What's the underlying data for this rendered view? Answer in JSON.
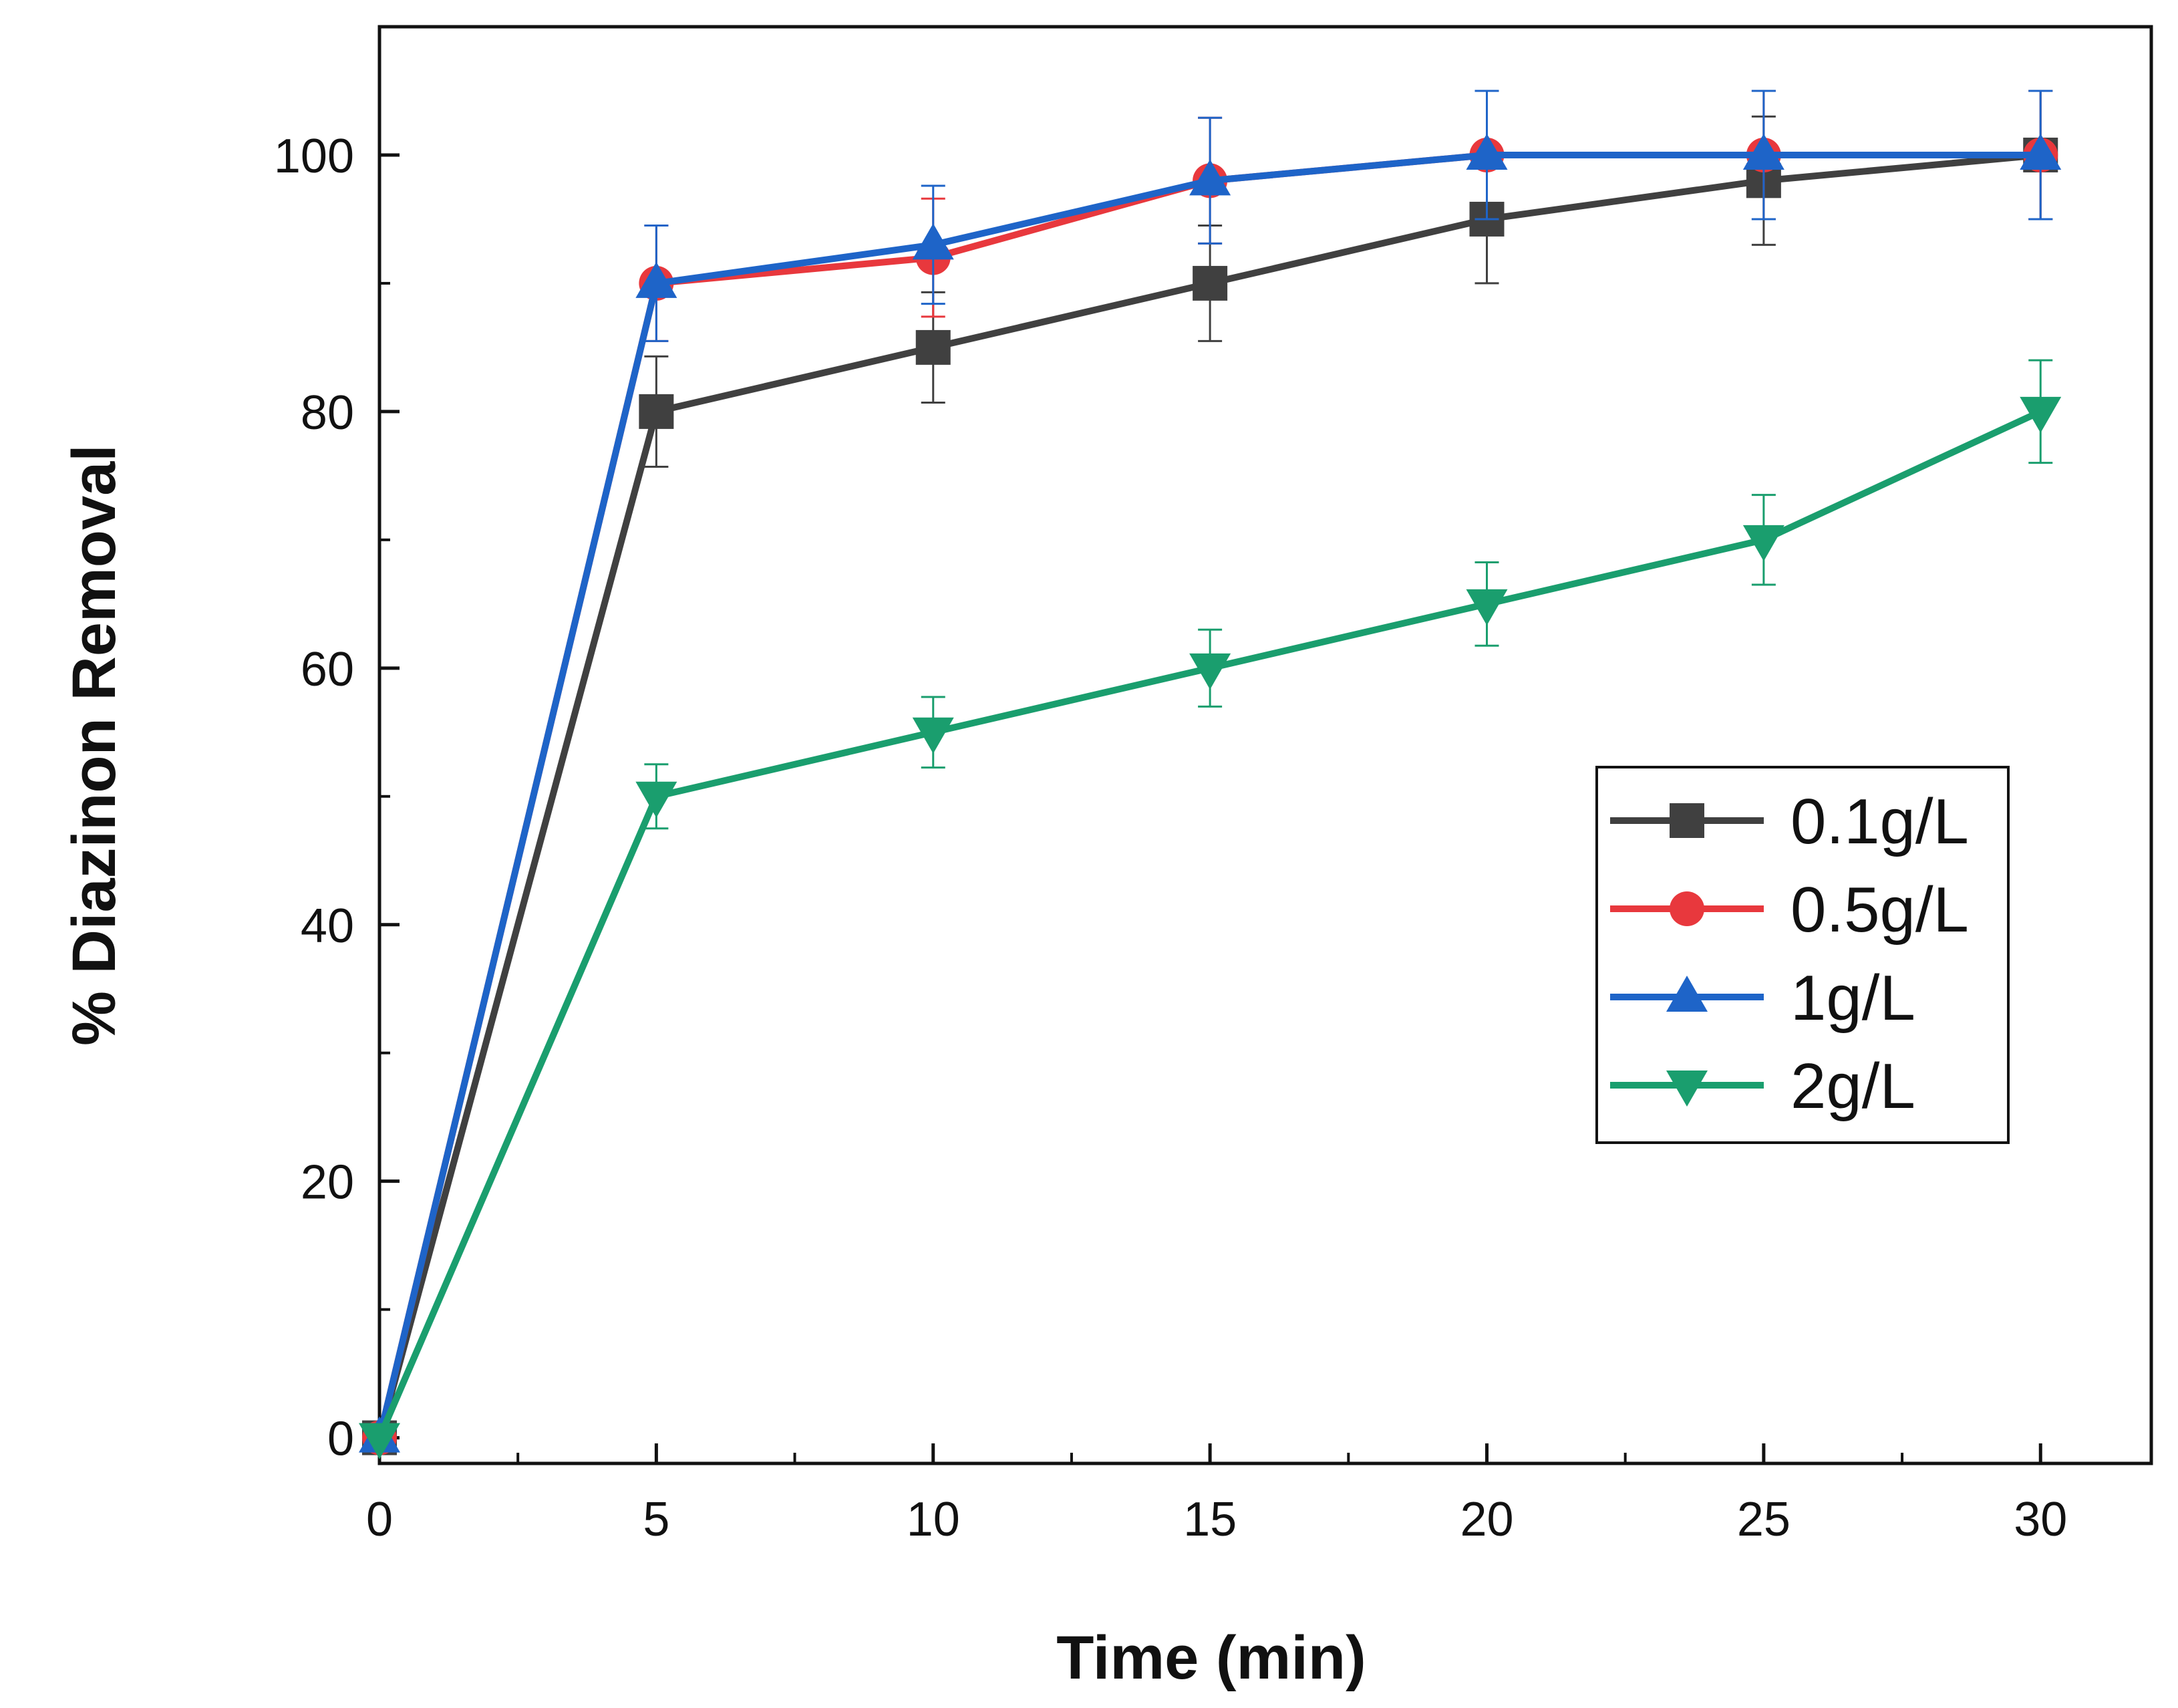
{
  "chart_data": {
    "type": "line",
    "title": "",
    "xlabel": "Time (min)",
    "ylabel": "% Diazinon Removal",
    "xlim": [
      0,
      32
    ],
    "ylim": [
      -2,
      110
    ],
    "xticks": [
      0,
      5,
      10,
      15,
      20,
      25,
      30
    ],
    "yticks": [
      0,
      20,
      40,
      60,
      80,
      100
    ],
    "x": [
      0,
      5,
      10,
      15,
      20,
      25,
      30
    ],
    "legend_position": "center-right",
    "series": [
      {
        "name": "0.1g/L",
        "color": "#404040",
        "marker": "square",
        "values": [
          0,
          80,
          85,
          90,
          95,
          98,
          100
        ],
        "errors": [
          0,
          4.3,
          4.3,
          4.5,
          5,
          5,
          5
        ]
      },
      {
        "name": "0.5g/L",
        "color": "#e8383d",
        "marker": "circle",
        "values": [
          0,
          90,
          92,
          98,
          100,
          100,
          100
        ],
        "errors": [
          0,
          4.5,
          4.6,
          4.9,
          5,
          5,
          5
        ]
      },
      {
        "name": "1g/L",
        "color": "#1e64c8",
        "marker": "triangle-up",
        "values": [
          0,
          90,
          93,
          98,
          100,
          100,
          100
        ],
        "errors": [
          0,
          4.5,
          4.6,
          4.9,
          5,
          5,
          5
        ]
      },
      {
        "name": "2g/L",
        "color": "#1a9e6e",
        "marker": "triangle-down",
        "values": [
          0,
          50,
          55,
          60,
          65,
          70,
          80
        ],
        "errors": [
          0,
          2.5,
          2.75,
          3,
          3.25,
          3.5,
          4
        ]
      }
    ]
  }
}
